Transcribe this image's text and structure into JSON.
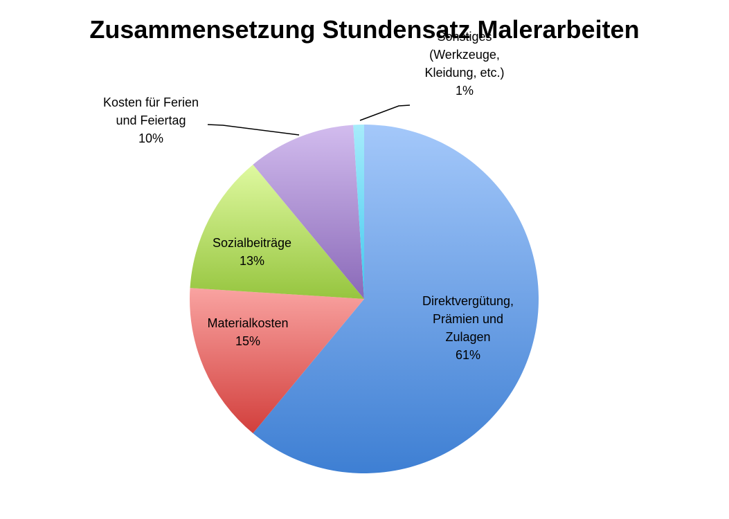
{
  "chart_data": {
    "type": "pie",
    "title": "Zusammensetzung Stundensatz Malerarbeiten",
    "slices": [
      {
        "label_lines": [
          "Direktvergütung,",
          "Prämien und",
          "Zulagen"
        ],
        "percent_label": "61%",
        "value": 61,
        "color_light": "#a4c8fa",
        "color_dark": "#3e7fd3"
      },
      {
        "label_lines": [
          "Materialkosten"
        ],
        "percent_label": "15%",
        "value": 15,
        "color_light": "#f9a3a1",
        "color_dark": "#d23f3c"
      },
      {
        "label_lines": [
          "Sozialbeiträge"
        ],
        "percent_label": "13%",
        "value": 13,
        "color_light": "#dff9a0",
        "color_dark": "#96c53f"
      },
      {
        "label_lines": [
          "Kosten für Ferien",
          "und Feiertag"
        ],
        "percent_label": "10%",
        "value": 10,
        "color_light": "#d2bcee",
        "color_dark": "#8a69b8"
      },
      {
        "label_lines": [
          "Sonstiges",
          "(Werkzeuge,",
          "Kleidung, etc.)"
        ],
        "percent_label": "1%",
        "value": 1,
        "color_light": "#a7ecfb",
        "color_dark": "#3fc8ee"
      }
    ],
    "legend": "none",
    "start_angle": "top, clockwise"
  }
}
